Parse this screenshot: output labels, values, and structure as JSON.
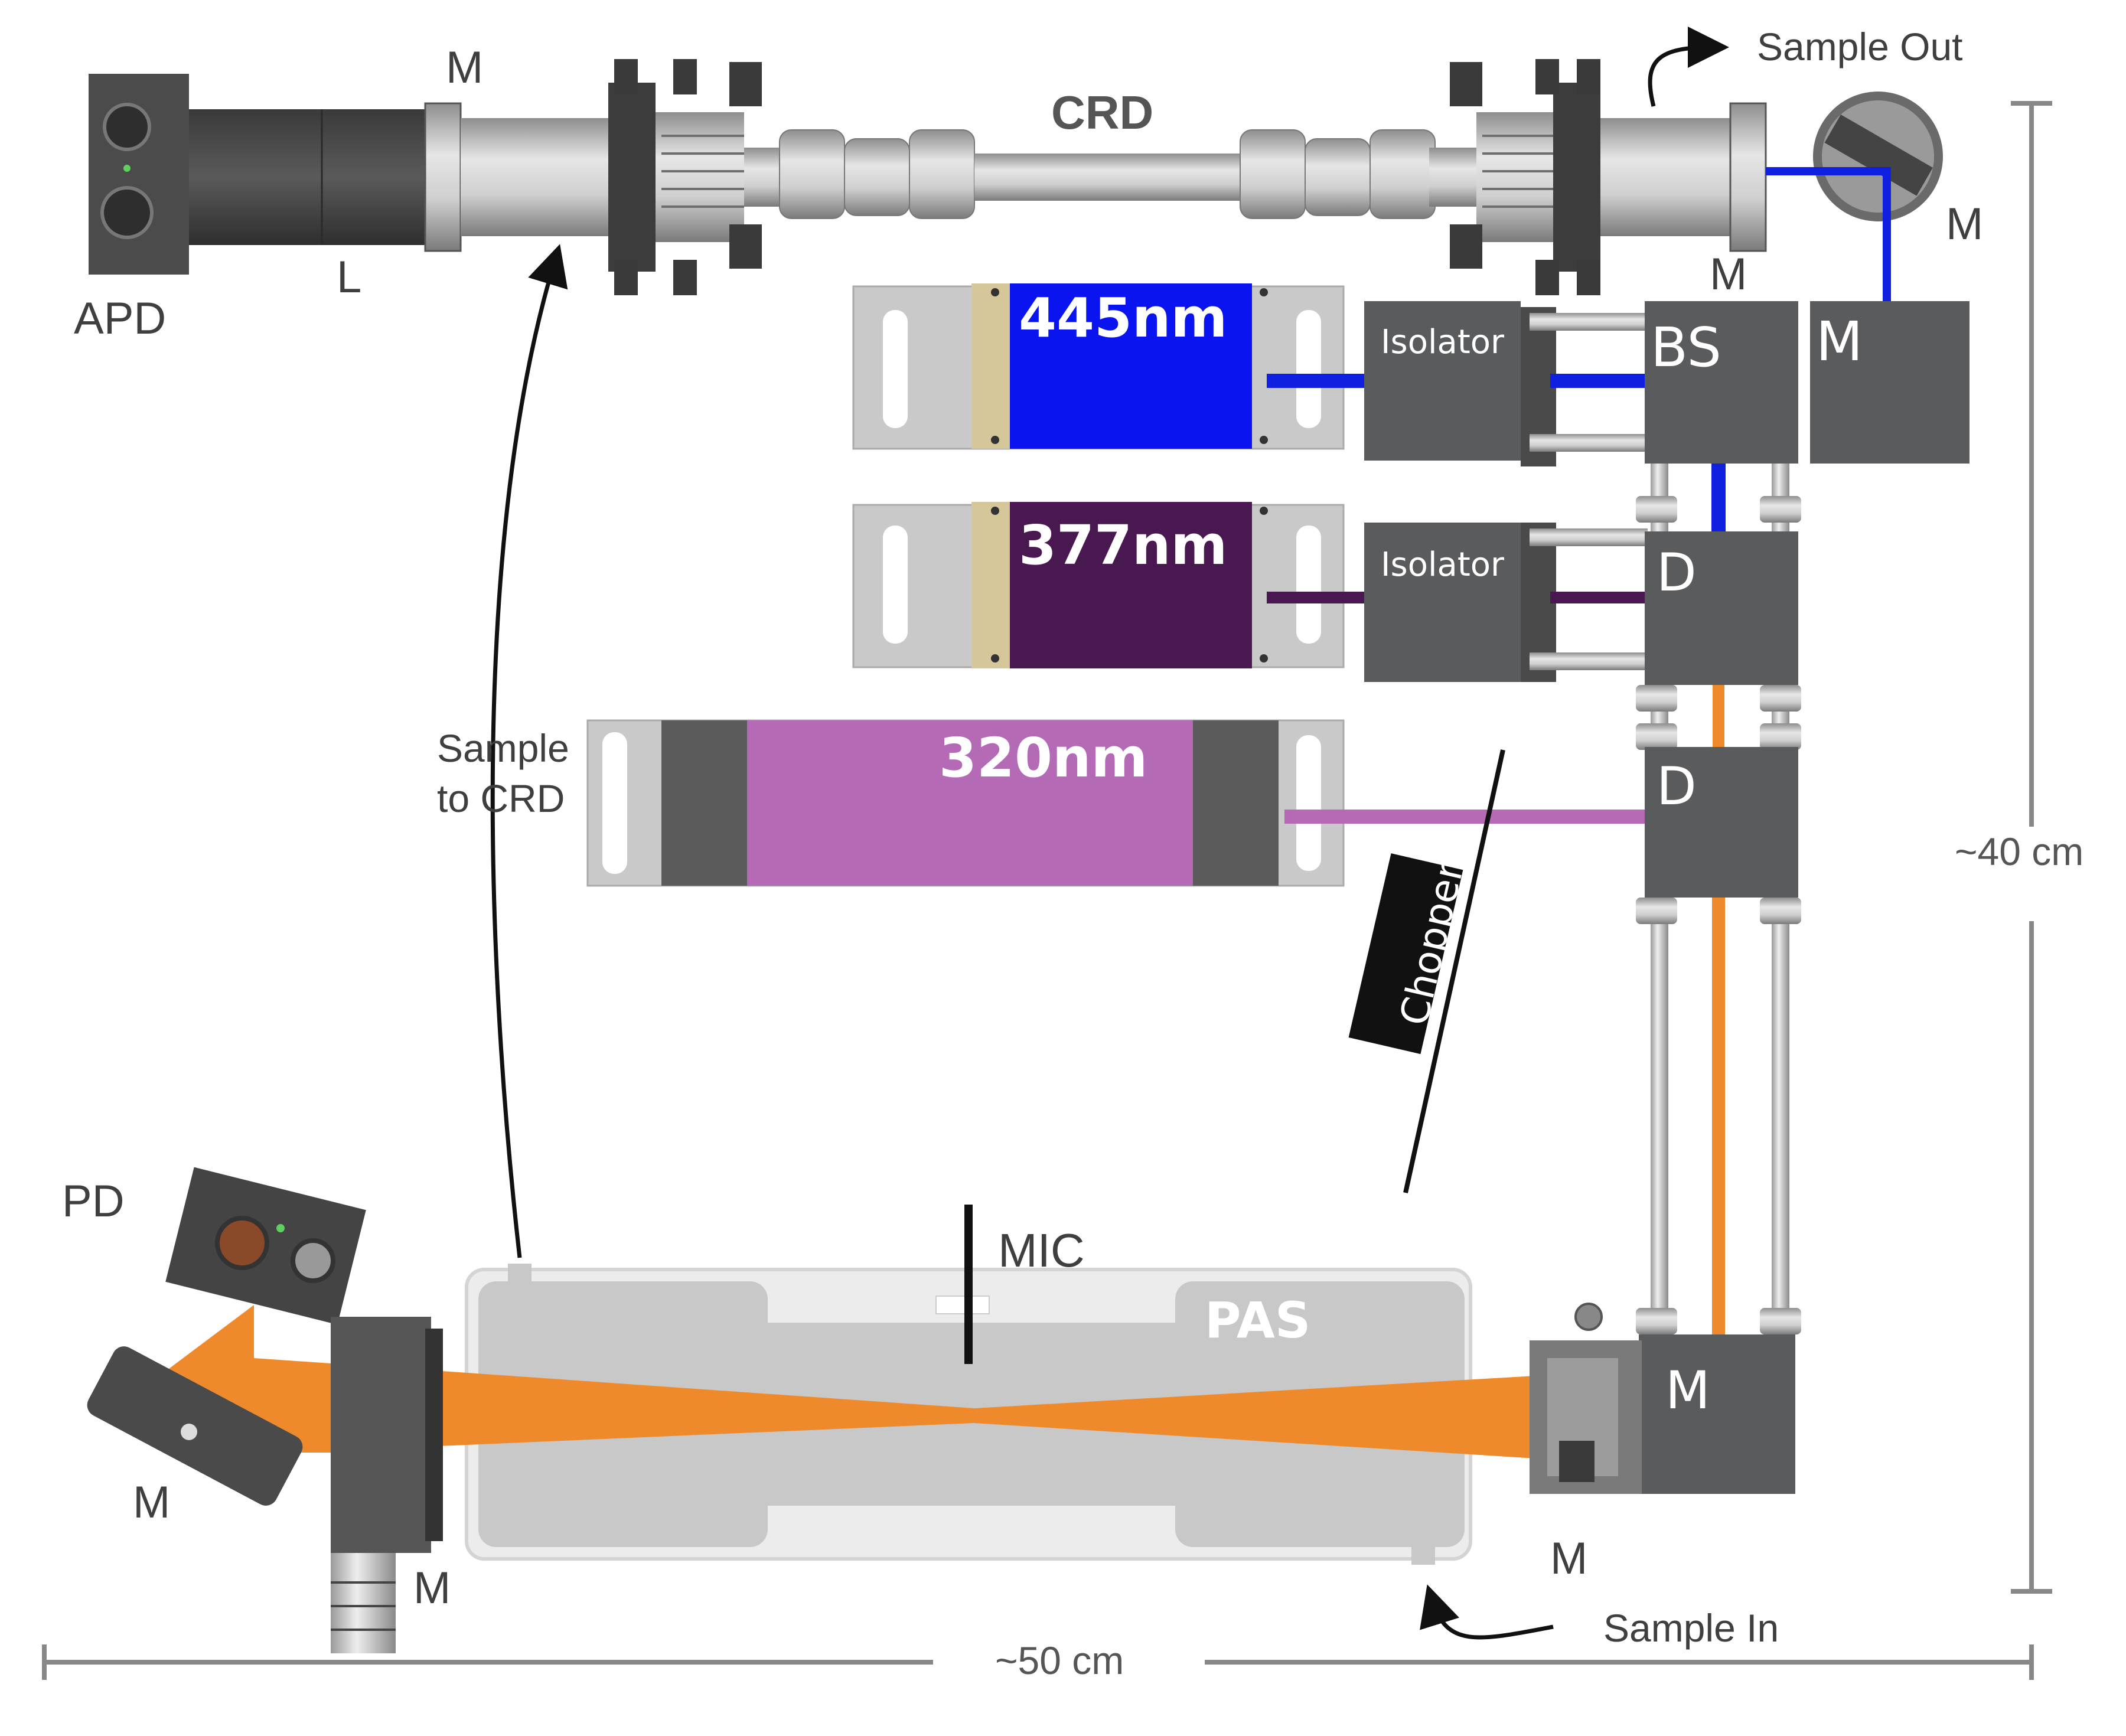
{
  "labels": {
    "apd": "APD",
    "l": "L",
    "m_top_left": "M",
    "crd": "CRD",
    "sample_out": "Sample Out",
    "m_top_right_lower": "M",
    "m_top_right": "M",
    "isolator_1": "Isolator",
    "isolator_2": "Isolator",
    "bs": "BS",
    "m_box_top": "M",
    "d_1": "D",
    "d_2": "D",
    "m_box_bottom": "M",
    "laser_445": "445nm",
    "laser_377": "377nm",
    "laser_320": "320nm",
    "chopper": "Chopper",
    "sample_to_crd_line1": "Sample",
    "sample_to_crd_line2": "to CRD",
    "pd": "PD",
    "m_left_tilted": "M",
    "m_left_bottom": "M",
    "mic": "MIC",
    "pas": "PAS",
    "m_bottom_right": "M",
    "sample_in": "Sample In",
    "height_dim": "~40 cm",
    "width_dim": "~50 cm"
  },
  "colors": {
    "laser_445": "#0a14f0",
    "laser_377": "#4a1850",
    "laser_320": "#b56ab5",
    "beam_orange": "#ee8a2b",
    "beam_blue": "#1020e0",
    "housing_dark": "#5a5b5d",
    "pas_body": "#c8c8c8"
  }
}
